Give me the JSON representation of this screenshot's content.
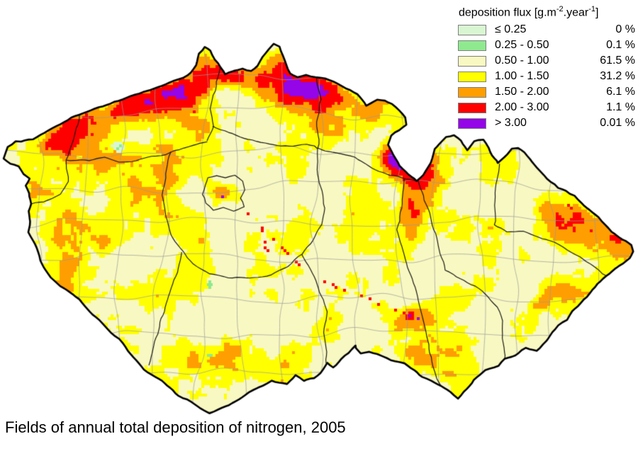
{
  "caption": {
    "text": "Fields of annual total deposition of nitrogen, 2005"
  },
  "legend": {
    "title": {
      "base1": "deposition flux [g.m",
      "sup1": "-2",
      "base2": ".year",
      "sup2": "-1",
      "base3": "]"
    },
    "items": [
      {
        "range": "≤ 0.25",
        "percent": "0 %",
        "color": "#d9f6d2"
      },
      {
        "range": "0.25 - 0.50",
        "percent": "0.1 %",
        "color": "#8fe98f"
      },
      {
        "range": "0.50 - 1.00",
        "percent": "61.5 %",
        "color": "#f8f8c2"
      },
      {
        "range": "1.00 - 1.50",
        "percent": "31.2 %",
        "color": "#ffff00"
      },
      {
        "range": "1.50 - 2.00",
        "percent": "6.1 %",
        "color": "#ff9e00"
      },
      {
        "range": "2.00 - 3.00",
        "percent": "1.1 %",
        "color": "#ff0000"
      },
      {
        "range": "> 3.00",
        "percent": "0.01 %",
        "color": "#9405e8"
      }
    ]
  },
  "map": {
    "outline_color": "#000000",
    "region_border_color": "#111111",
    "district_border_color": "#9b9b9b",
    "background_outside": "#ffffff"
  }
}
